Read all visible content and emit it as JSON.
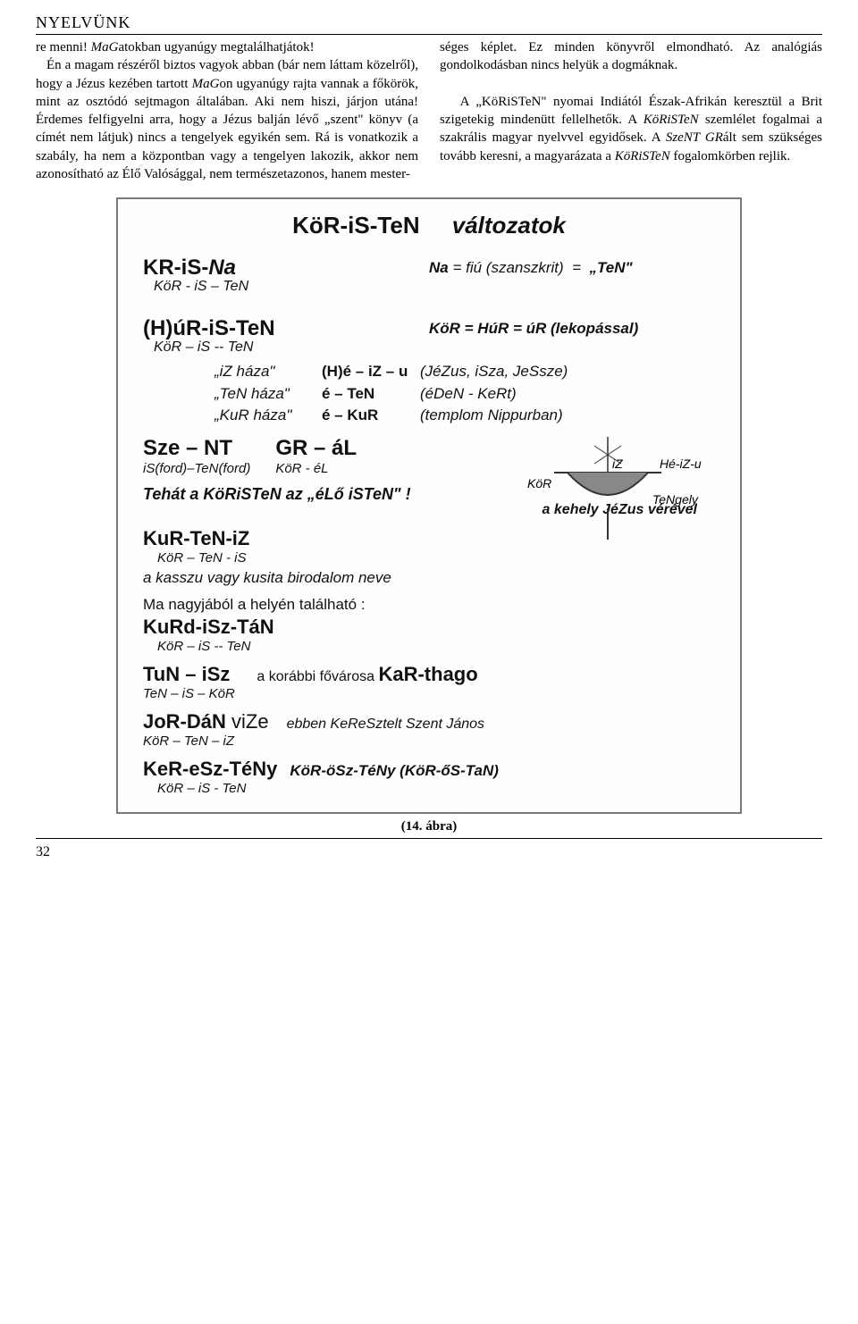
{
  "header": "NYELVÜNK",
  "col_left": "re menni! <span class=\"italic\">MaG</span>atokban ugyanúgy megtalálhatjátok!<br>&nbsp;&nbsp;&nbsp;Én a magam részéről biztos vagyok abban (bár nem láttam közelről), hogy a Jézus kezében tartott <span class=\"italic\">MaG</span>on ugyanúgy rajta vannak a főkörök, mint az osztódó sejtmagon általában. Aki nem hiszi, járjon utána! Érdemes felfigyelni arra, hogy a Jézus balján lévő „szent\" könyv (a címét nem látjuk) nincs a tengelyek egyikén sem. Rá is vonatkozik a szabály, ha nem a központban vagy a tengelyen lakozik, akkor nem azonosítható az Élő Valósággal, nem természetazonos, hanem mester-",
  "col_right": "séges képlet. Ez minden könyvről elmondható. Az analógiás gondolkodásban nincs helyük a dogmáknak.<br><br>&nbsp;&nbsp;&nbsp;A „KöRiSTeN\" nyomai Indiától Észak-Afrikán keresztül a Brit szigetekig mindenütt fellelhetők. A <span class=\"italic\">KöRiSTeN</span> szemlélet fogalmai a szakrális magyar nyelvvel egyidősek. A <span class=\"italic\">SzeNT GR</span>ált sem szükséges tovább keresni, a magyarázata a <span class=\"italic\">KöRiSTeN</span> fogalomkörben rejlik.",
  "fig": {
    "title_a": "KöR-iS-TeN",
    "title_b": "változatok",
    "kr_is_na": "KR-iS-Na",
    "kr_sub": "KöR - iS – TeN",
    "na_note": "Na = fiú (szanszkrit)  =  „TeN\"",
    "hur": "(H)úR-iS-TeN",
    "hur_sub": "KöR – iS -- TeN",
    "hur_note": "KöR = HúR = úR (lekopással)",
    "list": [
      {
        "c1": "„iZ háza\"",
        "c2": "(H)é – iZ – u",
        "c3": "(JéZus, iSza, JeSsze)"
      },
      {
        "c1": "„TeN háza\"",
        "c2": "é – TeN",
        "c3": "(éDeN - KeRt)"
      },
      {
        "c1": "„KuR háza\"",
        "c2": "é – KuR",
        "c3": "(templom Nippurban)"
      }
    ],
    "sze_nt": "Sze – NT",
    "sze_sub": "iS(ford)–TeN(ford)",
    "gr_al": "GR – áL",
    "gr_sub": "KöR -  éL",
    "tehat": "Tehát a KöRiSTeN az „éLő iSTeN\" !",
    "kehely_labels": {
      "kor": "KöR",
      "iz": "iZ",
      "heizu": "Hé-iZ-u",
      "tengely": "TeNgely"
    },
    "kehely_caption": "a kehely JéZus vérével",
    "kurteniz": "KuR-TeN-iZ",
    "kurteniz_sub": "KöR – TeN - iS",
    "kurteniz_mid": "a kasszu vagy kusita birodalom neve",
    "ma_nagy": "Ma nagyjából a helyén található :",
    "kurd": "KuRd-iSz-TáN",
    "kurd_sub": "KöR – iS -- TeN",
    "tun": "TuN – iSz",
    "tun_sub": "TeN – iS – KöR",
    "tun_side": "a korábbi fővárosa ",
    "karthago": "KaR-thago",
    "jordan": "JoR-DáN ",
    "jordan_vize": "viZe",
    "jordan_sub": "KöR – TeN – iZ",
    "jordan_side": "ebben KeReSztelt Szent János",
    "keresz": "KeR-eSz-TéNy",
    "keresz_side": "KöR-öSz-TéNy (KöR-őS-TaN)",
    "keresz_sub": "KöR – iS -  TeN"
  },
  "fig_caption": "(14. ábra)",
  "page_num": "32"
}
